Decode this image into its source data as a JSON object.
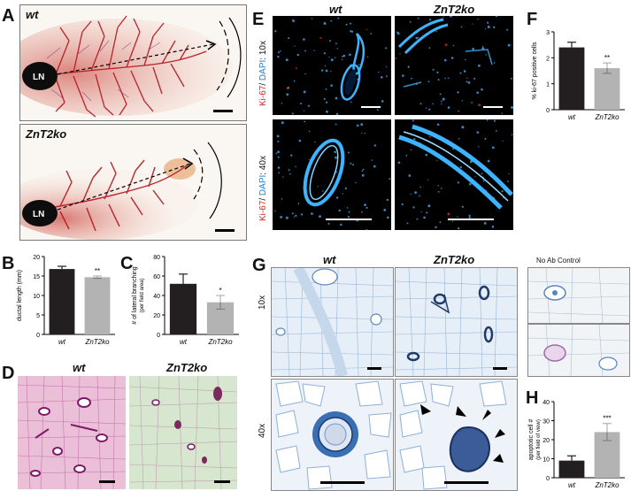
{
  "panels": {
    "A": {
      "letter": "A",
      "top_label": "wt",
      "bottom_label": "ZnT2ko",
      "ln": "LN"
    },
    "B": {
      "letter": "B",
      "ylabel": "ductal length (mm)",
      "significance": "**"
    },
    "C": {
      "letter": "C",
      "ylabel": "# of lateral branching",
      "ylabel2": "(per field area)",
      "significance": "*"
    },
    "D": {
      "letter": "D",
      "left_label": "wt",
      "right_label": "ZnT2ko"
    },
    "E": {
      "letter": "E",
      "col1": "wt",
      "col2": "ZnT2ko",
      "row1_marker": "Ki-67",
      "row1_sep": "/ ",
      "row1_dapi": "DAPI",
      "row1_mag": ": 10x",
      "row2_marker": "Ki-67",
      "row2_sep": "/ ",
      "row2_dapi": "DAPI",
      "row2_mag": ": 40x"
    },
    "F": {
      "letter": "F",
      "ylabel": "% ki-67 positive cells",
      "significance": "**"
    },
    "G": {
      "letter": "G",
      "col1": "wt",
      "col2": "ZnT2ko",
      "col3": "No Ab Control",
      "row1": "10x",
      "row2": "40x"
    },
    "H": {
      "letter": "H",
      "ylabel": "apoptotic cell #",
      "ylabel2": "(per field of view)",
      "significance": "***"
    }
  },
  "chart_data": [
    {
      "panel": "B",
      "type": "bar",
      "categories": [
        "wt",
        "ZnT2ko"
      ],
      "values": [
        16.8,
        14.7
      ],
      "errors": [
        0.7,
        0.3
      ],
      "colors": [
        "#231f20",
        "#b3b3b3"
      ],
      "ylabel": "ductal length (mm)",
      "ylim": [
        0,
        20
      ],
      "yticks": [
        0,
        5,
        10,
        15,
        20
      ]
    },
    {
      "panel": "C",
      "type": "bar",
      "categories": [
        "wt",
        "ZnT2ko"
      ],
      "values": [
        52,
        33
      ],
      "errors": [
        10,
        7
      ],
      "colors": [
        "#231f20",
        "#b3b3b3"
      ],
      "ylabel": "# of lateral branching (per field area)",
      "ylim": [
        0,
        80
      ],
      "yticks": [
        0,
        20,
        40,
        60,
        80
      ]
    },
    {
      "panel": "F",
      "type": "bar",
      "categories": [
        "wt",
        "ZnT2ko"
      ],
      "values": [
        2.4,
        1.6
      ],
      "errors": [
        0.2,
        0.2
      ],
      "colors": [
        "#231f20",
        "#b3b3b3"
      ],
      "ylabel": "% ki-67 positive cells",
      "ylim": [
        0,
        3
      ],
      "yticks": [
        0,
        1,
        2,
        3
      ]
    },
    {
      "panel": "H",
      "type": "bar",
      "categories": [
        "wt",
        "ZnT2ko"
      ],
      "values": [
        9,
        24
      ],
      "errors": [
        2.5,
        4.5
      ],
      "colors": [
        "#231f20",
        "#b3b3b3"
      ],
      "ylabel": "apoptotic cell # (per field of view)",
      "ylim": [
        0,
        40
      ],
      "yticks": [
        0,
        10,
        20,
        30,
        40
      ]
    }
  ]
}
